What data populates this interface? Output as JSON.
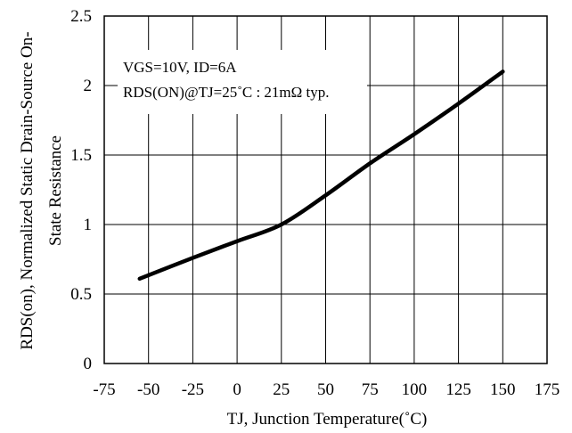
{
  "chart_data": {
    "type": "line",
    "title": "",
    "xlabel": "TJ, Junction Temperature(˚C)",
    "ylabel_line1": "RDS(on), Normalized Static Drain-Source On-",
    "ylabel_line2": "State Resistance",
    "xlim": [
      -75,
      175
    ],
    "ylim": [
      0,
      2.5
    ],
    "x_ticks": [
      -75,
      -50,
      -25,
      0,
      25,
      50,
      75,
      100,
      125,
      150,
      175
    ],
    "y_ticks": [
      0,
      0.5,
      1,
      1.5,
      2,
      2.5
    ],
    "y_tick_labels": [
      "0",
      "0.5",
      "1",
      "1.5",
      "2",
      "2.5"
    ],
    "grid": true,
    "annotations": [
      "VGS=10V, ID=6A",
      "RDS(ON)@TJ=25˚C : 21mΩ typ."
    ],
    "series": [
      {
        "color": "#000000",
        "x": [
          -55,
          -25,
          0,
          25,
          50,
          75,
          100,
          125,
          150
        ],
        "y": [
          0.61,
          0.76,
          0.88,
          1.0,
          1.21,
          1.44,
          1.65,
          1.87,
          2.1
        ]
      }
    ]
  }
}
